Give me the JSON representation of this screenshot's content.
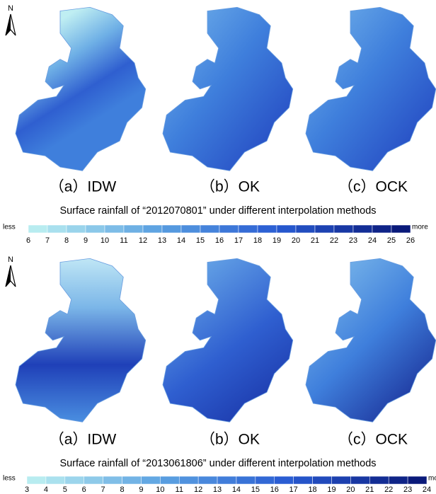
{
  "panels": [
    {
      "north": "N",
      "maps": [
        {
          "label": "（a）IDW"
        },
        {
          "label": "（b）OK"
        },
        {
          "label": "（c）OCK"
        }
      ],
      "title": "Surface rainfall of “2012070801” under different interpolation methods",
      "legend": {
        "low": "less",
        "high": "more",
        "ticks": [
          6,
          7,
          8,
          9,
          10,
          11,
          12,
          13,
          14,
          15,
          16,
          17,
          18,
          19,
          20,
          21,
          22,
          23,
          24,
          25,
          26
        ]
      }
    },
    {
      "north": "N",
      "maps": [
        {
          "label": "（a）IDW"
        },
        {
          "label": "（b）OK"
        },
        {
          "label": "（c）OCK"
        }
      ],
      "title": "Surface rainfall of “2013061806” under different interpolation methods",
      "legend": {
        "low": "less",
        "high": "more",
        "ticks": [
          3,
          4,
          5,
          6,
          7,
          8,
          9,
          10,
          11,
          12,
          13,
          14,
          15,
          16,
          17,
          18,
          19,
          20,
          21,
          22,
          23,
          24
        ]
      }
    }
  ]
}
